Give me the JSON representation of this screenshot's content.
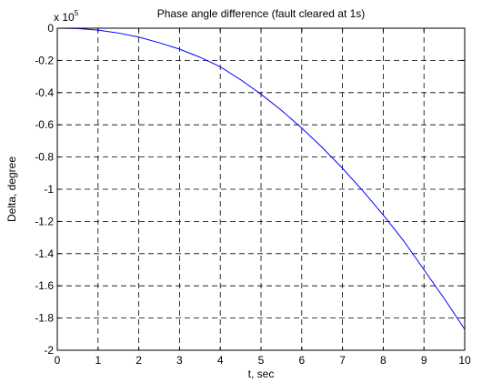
{
  "chart_data": {
    "type": "line",
    "title": "Phase angle difference (fault cleared at 1s)",
    "xlabel": "t, sec",
    "ylabel": "Delta, degree",
    "y_exponent_label": "x 10",
    "y_exponent_power": "5",
    "xlim": [
      0,
      10
    ],
    "ylim": [
      -2,
      0
    ],
    "x_ticks": [
      0,
      1,
      2,
      3,
      4,
      5,
      6,
      7,
      8,
      9,
      10
    ],
    "x_tick_labels": [
      "0",
      "1",
      "2",
      "3",
      "4",
      "5",
      "6",
      "7",
      "8",
      "9",
      "10"
    ],
    "y_ticks": [
      0,
      -0.2,
      -0.4,
      -0.6,
      -0.8,
      -1,
      -1.2,
      -1.4,
      -1.6,
      -1.8,
      -2
    ],
    "y_tick_labels": [
      "0",
      "-0.2",
      "-0.4",
      "-0.6",
      "-0.8",
      "-1",
      "-1.2",
      "-1.4",
      "-1.6",
      "-1.8",
      "-2"
    ],
    "grid": true,
    "series": [
      {
        "color": "#0000ff",
        "x": [
          0,
          0.5,
          1,
          1.5,
          2,
          2.5,
          3,
          3.5,
          4,
          4.5,
          5,
          5.5,
          6,
          6.5,
          7,
          7.5,
          8,
          8.5,
          9,
          9.5,
          10
        ],
        "y": [
          0,
          -0.002,
          -0.012,
          -0.03,
          -0.055,
          -0.09,
          -0.13,
          -0.18,
          -0.24,
          -0.32,
          -0.41,
          -0.51,
          -0.62,
          -0.74,
          -0.87,
          -1.01,
          -1.16,
          -1.32,
          -1.5,
          -1.68,
          -1.87
        ]
      }
    ]
  }
}
